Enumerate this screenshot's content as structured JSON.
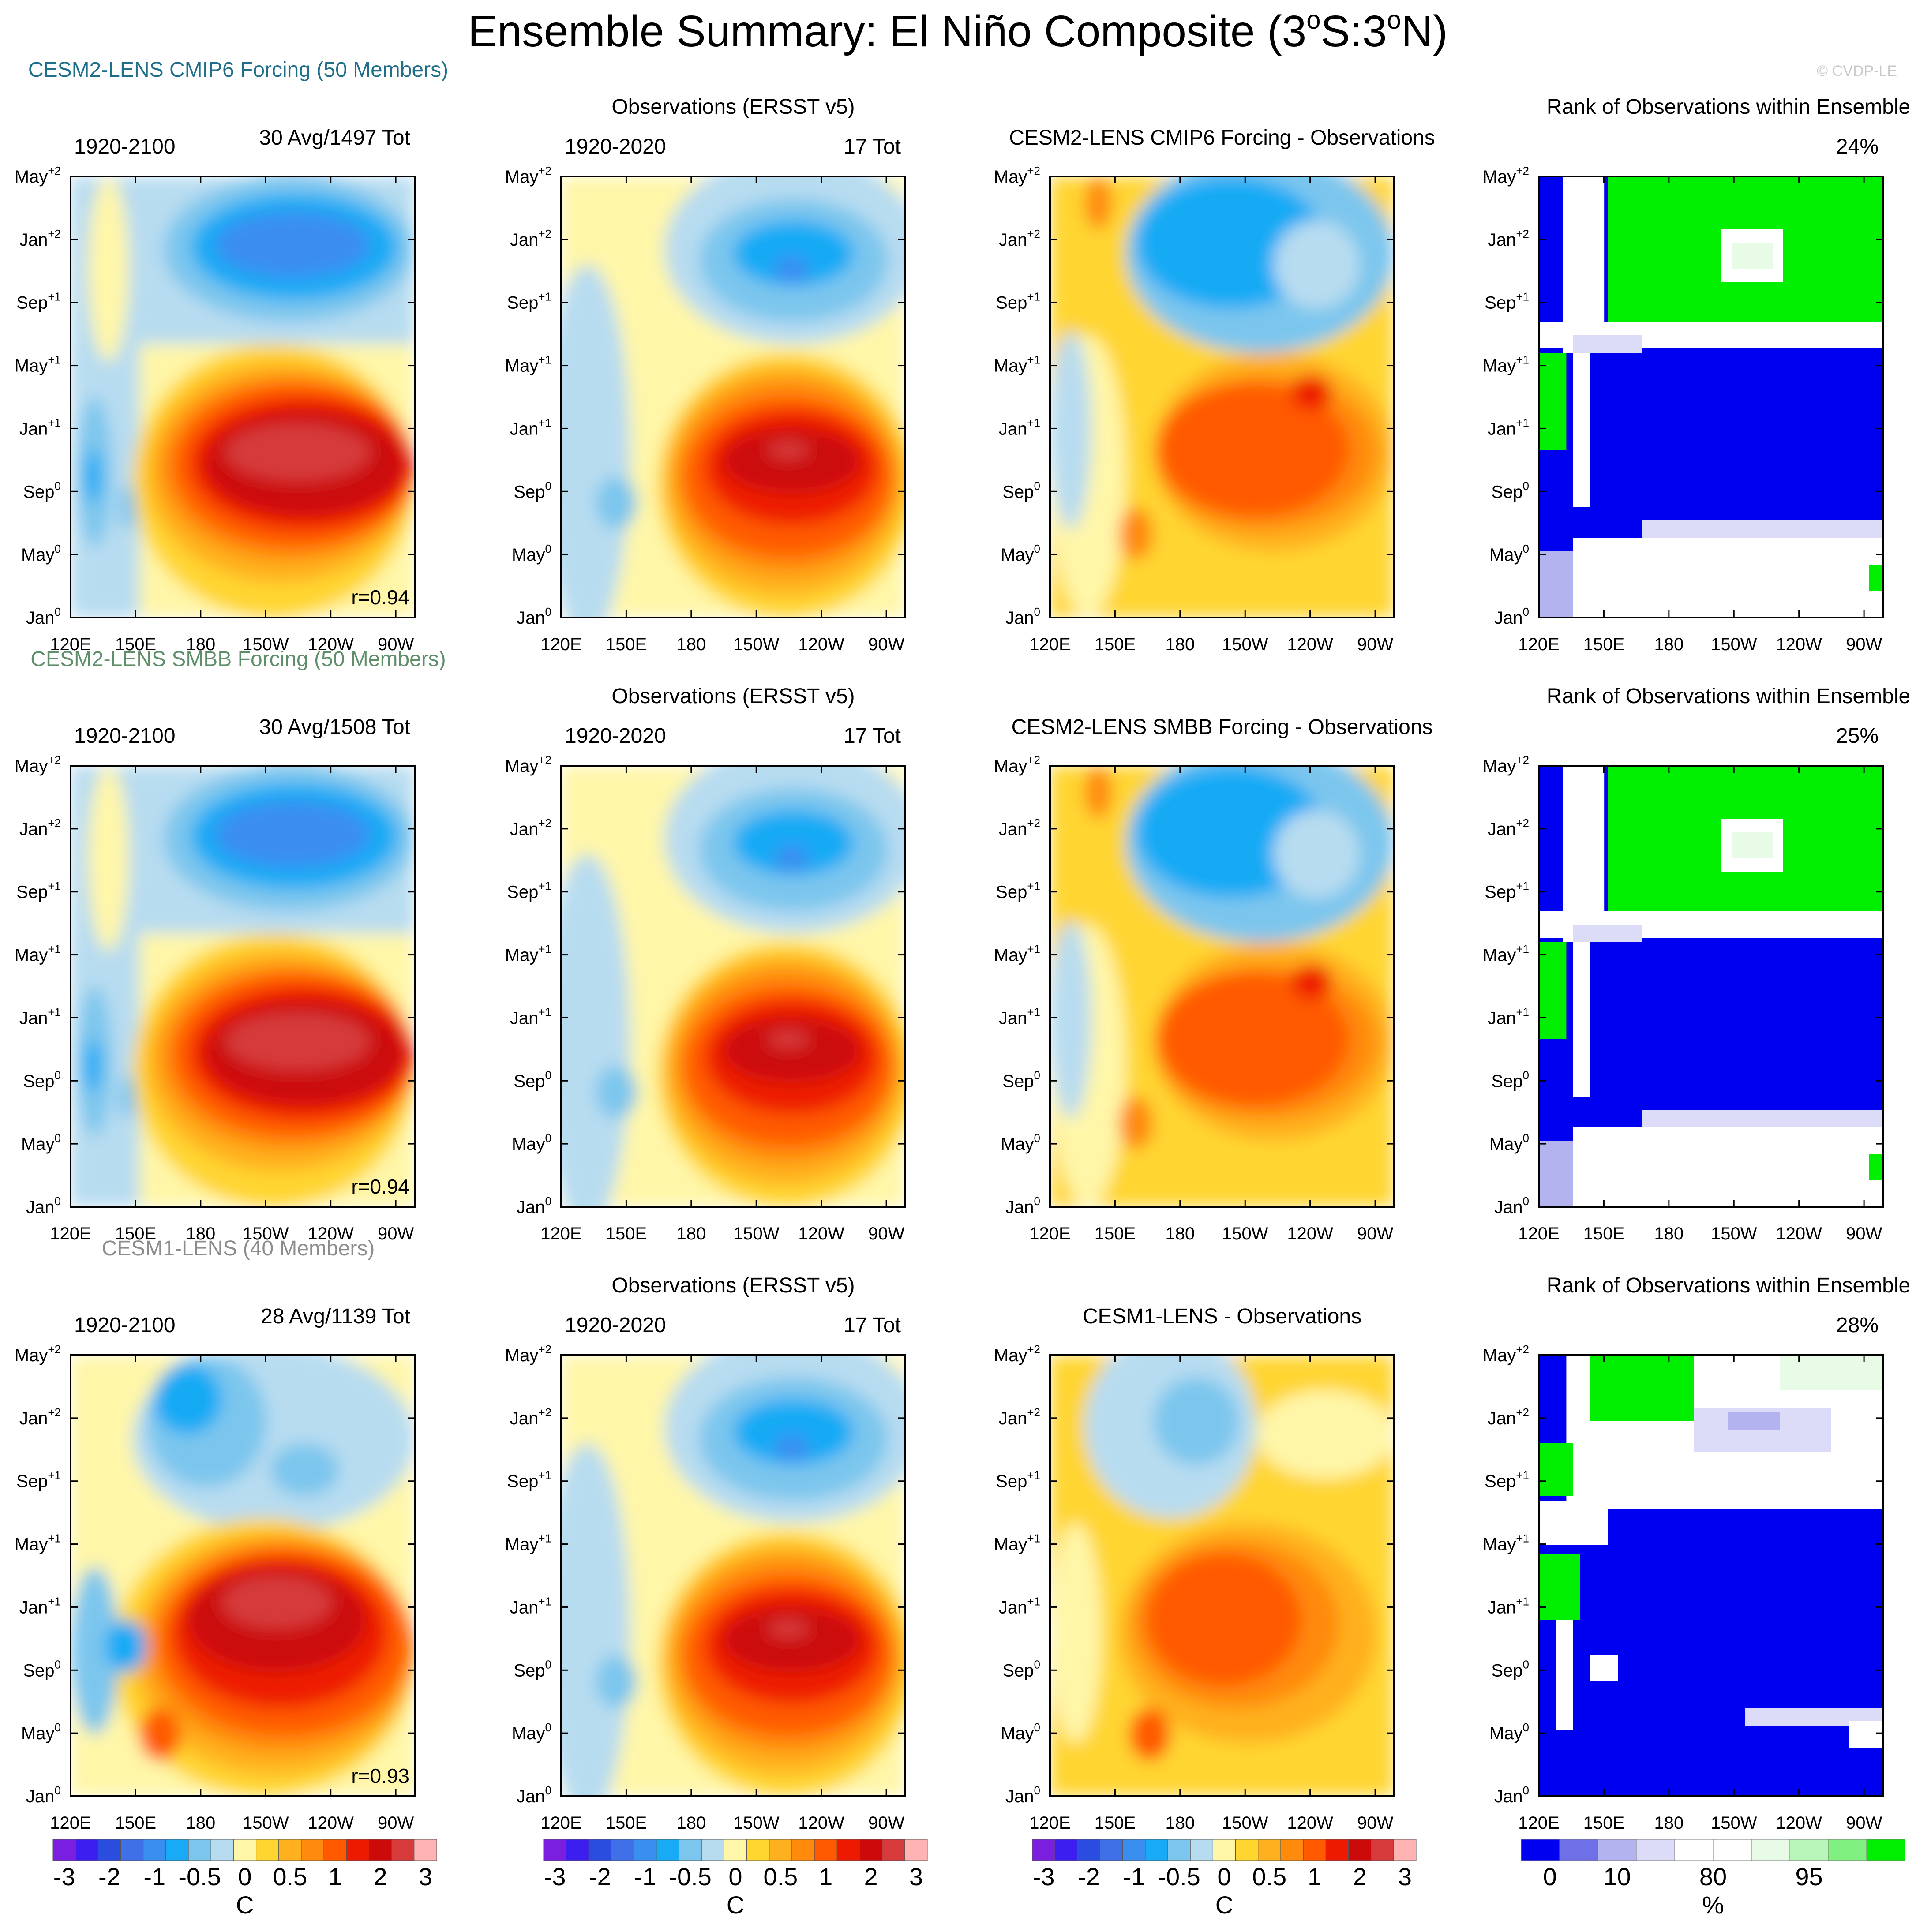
{
  "title_main": "Ensemble Summary: El Niño Composite (3",
  "title_deg1": "o",
  "title_mid": "S:3",
  "title_deg2": "o",
  "title_end": "N)",
  "watermark": "© CVDP-LE",
  "colors": {
    "model1": "#1f6f8b",
    "model2": "#5f8f6a",
    "model3": "#8c8c8c",
    "sst_scale": [
      "#7a1fe0",
      "#3d1ef0",
      "#2a4de0",
      "#3f70e8",
      "#3a8ef0",
      "#18aaf5",
      "#7cc6ee",
      "#b7dcf0",
      "#fff6a8",
      "#ffd530",
      "#ffb01e",
      "#ff8a0c",
      "#ff5a00",
      "#ee1a00",
      "#cc0a0a",
      "#d63a3a",
      "#ffb3b3"
    ],
    "rank_scale": [
      "#0000f0",
      "#6f6fe8",
      "#b3b3f0",
      "#dcdcf8",
      "#ffffff",
      "#ffffff",
      "#e7fbe7",
      "#b8f5b8",
      "#80f080",
      "#00ee00"
    ]
  },
  "chart_data": [
    {
      "type": "heatmap",
      "rows": [
        {
          "model_label": "CESM2-LENS CMIP6 Forcing (50 Members)",
          "model_color": "model1",
          "panels": [
            {
              "kind": "model",
              "left_label": "1920-2100",
              "right_label": "30 Avg/1497 Tot",
              "r_label": "r=0.94",
              "pattern": "A"
            },
            {
              "kind": "obs",
              "title": "Observations (ERSST v5)",
              "left_label": "1920-2020",
              "right_label": "17 Tot",
              "pattern": "O"
            },
            {
              "kind": "diff",
              "title": "CESM2-LENS CMIP6 Forcing - Observations",
              "pattern": "D"
            },
            {
              "kind": "rank",
              "title": "Rank of Observations within Ensemble",
              "right_label": "24%",
              "pattern": "R"
            }
          ]
        },
        {
          "model_label": "CESM2-LENS SMBB Forcing (50 Members)",
          "model_color": "model2",
          "panels": [
            {
              "kind": "model",
              "left_label": "1920-2100",
              "right_label": "30 Avg/1508 Tot",
              "r_label": "r=0.94",
              "pattern": "A"
            },
            {
              "kind": "obs",
              "title": "Observations (ERSST v5)",
              "left_label": "1920-2020",
              "right_label": "17 Tot",
              "pattern": "O"
            },
            {
              "kind": "diff",
              "title": "CESM2-LENS SMBB Forcing - Observations",
              "pattern": "D"
            },
            {
              "kind": "rank",
              "title": "Rank of Observations within Ensemble",
              "right_label": "25%",
              "pattern": "R"
            }
          ]
        },
        {
          "model_label": "CESM1-LENS (40 Members)",
          "model_color": "model3",
          "panels": [
            {
              "kind": "model",
              "left_label": "1920-2100",
              "right_label": "28 Avg/1139 Tot",
              "r_label": "r=0.93",
              "pattern": "B"
            },
            {
              "kind": "obs",
              "title": "Observations (ERSST v5)",
              "left_label": "1920-2020",
              "right_label": "17 Tot",
              "pattern": "O"
            },
            {
              "kind": "diff",
              "title": "CESM1-LENS - Observations",
              "pattern": "E"
            },
            {
              "kind": "rank",
              "title": "Rank of Observations within Ensemble",
              "right_label": "28%",
              "pattern": "S"
            }
          ]
        }
      ],
      "x_ticks": [
        "120E",
        "150E",
        "180",
        "150W",
        "120W",
        "90W"
      ],
      "y_ticks": [
        {
          "base": "Jan",
          "sup": "0"
        },
        {
          "base": "May",
          "sup": "0"
        },
        {
          "base": "Sep",
          "sup": "0"
        },
        {
          "base": "Jan",
          "sup": "+1"
        },
        {
          "base": "May",
          "sup": "+1"
        },
        {
          "base": "Sep",
          "sup": "+1"
        },
        {
          "base": "Jan",
          "sup": "+2"
        },
        {
          "base": "May",
          "sup": "+2"
        }
      ],
      "colorbar_sst": {
        "labels": [
          "-3",
          "-2",
          "-1",
          "-0.5",
          "0",
          "0.5",
          "1",
          "2",
          "3"
        ],
        "unit": "C"
      },
      "colorbar_rank": {
        "labels": [
          "0",
          "10",
          "80",
          "95"
        ],
        "unit": "%"
      }
    }
  ]
}
